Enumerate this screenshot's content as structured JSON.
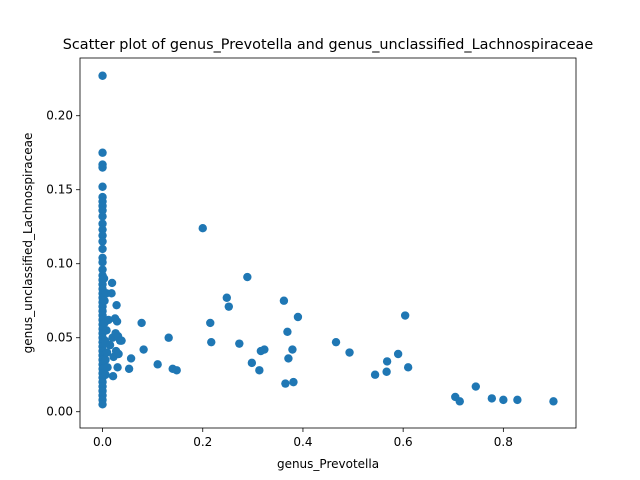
{
  "chart_data": {
    "type": "scatter",
    "title": "Scatter plot of genus_Prevotella and genus_unclassified_Lachnospiraceae",
    "xlabel": "genus_Prevotella",
    "ylabel": "genus_unclassified_Lachnospiraceae",
    "xlim": [
      -0.045,
      0.945
    ],
    "ylim": [
      -0.011,
      0.239
    ],
    "xticks": [
      0.0,
      0.2,
      0.4,
      0.6,
      0.8
    ],
    "xtick_labels": [
      "0.0",
      "0.2",
      "0.4",
      "0.6",
      "0.8"
    ],
    "yticks": [
      0.0,
      0.05,
      0.1,
      0.15,
      0.2
    ],
    "ytick_labels": [
      "0.00",
      "0.05",
      "0.10",
      "0.15",
      "0.20"
    ],
    "grid": false,
    "marker_color": "#1f77b4",
    "points": [
      [
        0.0,
        0.227
      ],
      [
        0.0,
        0.175
      ],
      [
        0.0,
        0.167
      ],
      [
        0.0,
        0.165
      ],
      [
        0.0,
        0.152
      ],
      [
        0.0,
        0.145
      ],
      [
        0.0,
        0.142
      ],
      [
        0.0,
        0.139
      ],
      [
        0.0,
        0.136
      ],
      [
        0.0,
        0.132
      ],
      [
        0.0,
        0.127
      ],
      [
        0.0,
        0.123
      ],
      [
        0.0,
        0.119
      ],
      [
        0.0,
        0.115
      ],
      [
        0.0,
        0.11
      ],
      [
        0.0,
        0.104
      ],
      [
        0.0,
        0.101
      ],
      [
        0.0,
        0.096
      ],
      [
        0.0,
        0.092
      ],
      [
        0.0,
        0.089
      ],
      [
        0.0,
        0.086
      ],
      [
        0.0,
        0.083
      ],
      [
        0.0,
        0.08
      ],
      [
        0.0,
        0.077
      ],
      [
        0.0,
        0.074
      ],
      [
        0.0,
        0.071
      ],
      [
        0.0,
        0.068
      ],
      [
        0.0,
        0.065
      ],
      [
        0.0,
        0.062
      ],
      [
        0.0,
        0.059
      ],
      [
        0.0,
        0.056
      ],
      [
        0.0,
        0.053
      ],
      [
        0.0,
        0.05
      ],
      [
        0.0,
        0.047
      ],
      [
        0.0,
        0.044
      ],
      [
        0.0,
        0.041
      ],
      [
        0.0,
        0.038
      ],
      [
        0.0,
        0.035
      ],
      [
        0.0,
        0.032
      ],
      [
        0.0,
        0.029
      ],
      [
        0.0,
        0.026
      ],
      [
        0.0,
        0.023
      ],
      [
        0.0,
        0.02
      ],
      [
        0.0,
        0.017
      ],
      [
        0.0,
        0.014
      ],
      [
        0.0,
        0.011
      ],
      [
        0.0,
        0.008
      ],
      [
        0.0,
        0.005
      ],
      [
        0.003,
        0.09
      ],
      [
        0.004,
        0.075
      ],
      [
        0.004,
        0.06
      ],
      [
        0.005,
        0.048
      ],
      [
        0.006,
        0.035
      ],
      [
        0.006,
        0.025
      ],
      [
        0.008,
        0.08
      ],
      [
        0.008,
        0.055
      ],
      [
        0.009,
        0.04
      ],
      [
        0.01,
        0.03
      ],
      [
        0.012,
        0.062
      ],
      [
        0.015,
        0.045
      ],
      [
        0.018,
        0.08
      ],
      [
        0.019,
        0.087
      ],
      [
        0.02,
        0.05
      ],
      [
        0.021,
        0.024
      ],
      [
        0.022,
        0.037
      ],
      [
        0.025,
        0.063
      ],
      [
        0.026,
        0.053
      ],
      [
        0.027,
        0.041
      ],
      [
        0.028,
        0.072
      ],
      [
        0.029,
        0.061
      ],
      [
        0.03,
        0.03
      ],
      [
        0.031,
        0.051
      ],
      [
        0.032,
        0.039
      ],
      [
        0.035,
        0.048
      ],
      [
        0.038,
        0.048
      ],
      [
        0.053,
        0.029
      ],
      [
        0.057,
        0.036
      ],
      [
        0.078,
        0.06
      ],
      [
        0.082,
        0.042
      ],
      [
        0.11,
        0.032
      ],
      [
        0.132,
        0.05
      ],
      [
        0.14,
        0.029
      ],
      [
        0.148,
        0.028
      ],
      [
        0.2,
        0.124
      ],
      [
        0.215,
        0.06
      ],
      [
        0.217,
        0.047
      ],
      [
        0.248,
        0.077
      ],
      [
        0.252,
        0.071
      ],
      [
        0.273,
        0.046
      ],
      [
        0.289,
        0.091
      ],
      [
        0.298,
        0.033
      ],
      [
        0.313,
        0.028
      ],
      [
        0.316,
        0.041
      ],
      [
        0.323,
        0.042
      ],
      [
        0.362,
        0.075
      ],
      [
        0.365,
        0.019
      ],
      [
        0.369,
        0.054
      ],
      [
        0.371,
        0.036
      ],
      [
        0.379,
        0.042
      ],
      [
        0.381,
        0.02
      ],
      [
        0.39,
        0.064
      ],
      [
        0.466,
        0.047
      ],
      [
        0.493,
        0.04
      ],
      [
        0.544,
        0.025
      ],
      [
        0.567,
        0.027
      ],
      [
        0.568,
        0.034
      ],
      [
        0.59,
        0.039
      ],
      [
        0.604,
        0.065
      ],
      [
        0.61,
        0.03
      ],
      [
        0.704,
        0.01
      ],
      [
        0.713,
        0.007
      ],
      [
        0.745,
        0.017
      ],
      [
        0.777,
        0.009
      ],
      [
        0.8,
        0.008
      ],
      [
        0.828,
        0.008
      ],
      [
        0.9,
        0.007
      ]
    ]
  }
}
